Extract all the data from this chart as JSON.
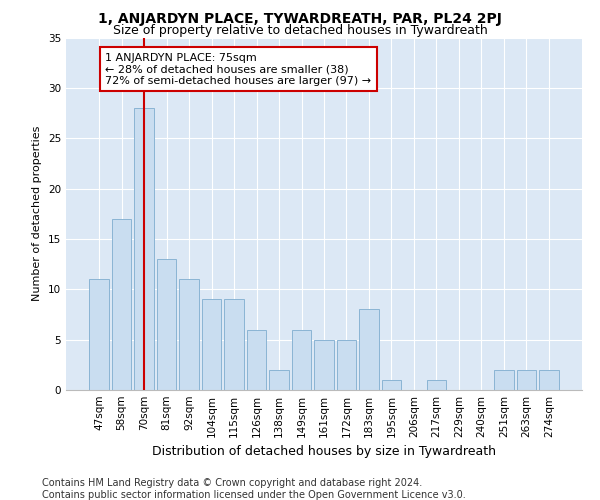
{
  "title": "1, ANJARDYN PLACE, TYWARDREATH, PAR, PL24 2PJ",
  "subtitle": "Size of property relative to detached houses in Tywardreath",
  "xlabel": "Distribution of detached houses by size in Tywardreath",
  "ylabel": "Number of detached properties",
  "categories": [
    "47sqm",
    "58sqm",
    "70sqm",
    "81sqm",
    "92sqm",
    "104sqm",
    "115sqm",
    "126sqm",
    "138sqm",
    "149sqm",
    "161sqm",
    "172sqm",
    "183sqm",
    "195sqm",
    "206sqm",
    "217sqm",
    "229sqm",
    "240sqm",
    "251sqm",
    "263sqm",
    "274sqm"
  ],
  "values": [
    11,
    17,
    28,
    13,
    11,
    9,
    9,
    6,
    2,
    6,
    5,
    5,
    8,
    1,
    0,
    1,
    0,
    0,
    2,
    2,
    2
  ],
  "bar_color": "#c9ddf0",
  "bar_edge_color": "#8ab4d4",
  "highlight_bar_index": 2,
  "highlight_line_color": "#cc0000",
  "ylim": [
    0,
    35
  ],
  "yticks": [
    0,
    5,
    10,
    15,
    20,
    25,
    30,
    35
  ],
  "annotation_text": "1 ANJARDYN PLACE: 75sqm\n← 28% of detached houses are smaller (38)\n72% of semi-detached houses are larger (97) →",
  "annotation_box_facecolor": "#ffffff",
  "annotation_box_edgecolor": "#cc0000",
  "footer_line1": "Contains HM Land Registry data © Crown copyright and database right 2024.",
  "footer_line2": "Contains public sector information licensed under the Open Government Licence v3.0.",
  "fig_facecolor": "#ffffff",
  "ax_facecolor": "#dce8f5",
  "grid_color": "#ffffff",
  "title_fontsize": 10,
  "subtitle_fontsize": 9,
  "xlabel_fontsize": 9,
  "ylabel_fontsize": 8,
  "tick_fontsize": 7.5,
  "annotation_fontsize": 8,
  "footer_fontsize": 7
}
